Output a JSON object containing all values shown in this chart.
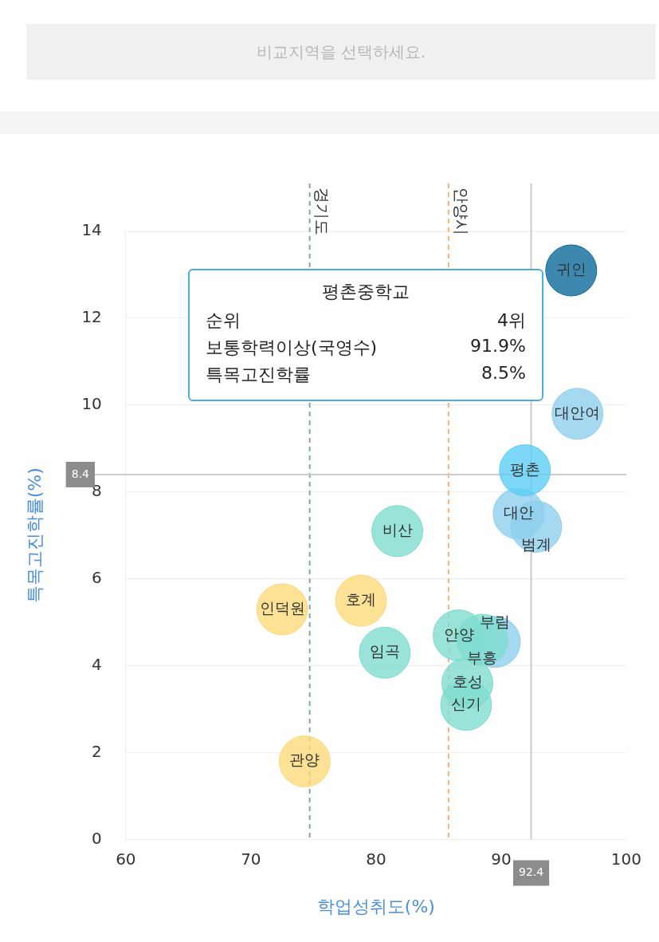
{
  "chart_data": {
    "type": "bubble",
    "xlabel": "학업성취도(%)",
    "ylabel": "특목고진학률(%)",
    "xlim": [
      60,
      100
    ],
    "xticks": [
      60,
      70,
      80,
      90,
      100
    ],
    "ylim": [
      0,
      14
    ],
    "yticks": [
      0,
      2,
      4,
      6,
      8,
      10,
      12,
      14
    ],
    "grid": "y",
    "legend": false,
    "series": [
      {
        "name": "귀인",
        "color": "#0b6a9a",
        "x": [
          95.6
        ],
        "values": [
          13.1
        ],
        "sizes": [
          1
        ]
      },
      {
        "name": "대안여",
        "color": "#8fd0ee",
        "x": [
          96.1
        ],
        "values": [
          9.8
        ],
        "sizes": [
          1
        ]
      },
      {
        "name": "평촌",
        "color": "#5ccdf5",
        "x": [
          91.9
        ],
        "values": [
          8.5
        ],
        "sizes": [
          1
        ]
      },
      {
        "name": "대안",
        "color": "#8fd0ee",
        "x": [
          91.4
        ],
        "values": [
          7.5
        ],
        "sizes": [
          1
        ]
      },
      {
        "name": "범계",
        "color": "#8fd0ee",
        "x": [
          92.8
        ],
        "values": [
          7.2
        ],
        "sizes": [
          1
        ]
      },
      {
        "name": "비산",
        "color": "#7fdcd0",
        "x": [
          81.7
        ],
        "values": [
          7.1
        ],
        "sizes": [
          1
        ]
      },
      {
        "name": "호계",
        "color": "#fcd97a",
        "x": [
          78.8
        ],
        "values": [
          5.5
        ],
        "sizes": [
          1
        ]
      },
      {
        "name": "인덕원",
        "color": "#fcd97a",
        "x": [
          72.5
        ],
        "values": [
          5.3
        ],
        "sizes": [
          1
        ]
      },
      {
        "name": "임곡",
        "color": "#7fdcd0",
        "x": [
          80.7
        ],
        "values": [
          4.3
        ],
        "sizes": [
          1
        ]
      },
      {
        "name": "안양",
        "color": "#7fdcd0",
        "x": [
          86.6
        ],
        "values": [
          4.7
        ],
        "sizes": [
          1
        ]
      },
      {
        "name": "부흥",
        "color": "#7fdcd0",
        "x": [
          88.5
        ],
        "values": [
          4.6
        ],
        "sizes": [
          1
        ]
      },
      {
        "name": "부림",
        "color": "#8fd0ee",
        "x": [
          89.5
        ],
        "values": [
          4.55
        ],
        "sizes": [
          1
        ]
      },
      {
        "name": "호성",
        "color": "#7fdcd0",
        "x": [
          87.3
        ],
        "values": [
          3.6
        ],
        "sizes": [
          1
        ]
      },
      {
        "name": "신기",
        "color": "#7fdcd0",
        "x": [
          87.2
        ],
        "values": [
          3.1
        ],
        "sizes": [
          1
        ]
      },
      {
        "name": "관양",
        "color": "#fcd97a",
        "x": [
          74.3
        ],
        "values": [
          1.8
        ],
        "sizes": [
          1
        ]
      }
    ],
    "ref_lines": [
      {
        "axis": "x",
        "value": 74.7,
        "label": "경기도",
        "color": "#7fa7bf",
        "line_style": "dashed"
      },
      {
        "axis": "x",
        "value": 85.8,
        "label": "안양시",
        "color": "#f6b47a",
        "line_style": "dashed"
      },
      {
        "axis": "x",
        "value": 92.4,
        "label": "92.4",
        "color": "#cccccc",
        "line_style": "solid"
      },
      {
        "axis": "y",
        "value": 8.4,
        "label": "8.4",
        "color": "#cccccc",
        "line_style": "solid"
      }
    ],
    "annotations": [
      "비교지역을 선택하세요.",
      "평촌중학교",
      "순위",
      "4위",
      "보통학력이상(국영수)",
      "91.9%",
      "특목고진학률",
      "8.5%"
    ]
  }
}
